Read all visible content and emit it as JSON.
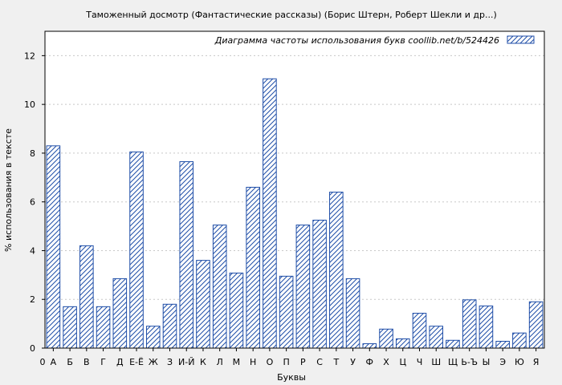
{
  "chart_data": {
    "type": "bar",
    "title": "Таможенный досмотр (Фантастические рассказы) (Борис Штерн, Роберт Шекли и др...)",
    "xlabel": "Буквы",
    "ylabel": "% использования в тексте",
    "legend": "Диаграмма частоты использования букв  coollib.net/b/524426",
    "legend_position": "top-right",
    "ylim": [
      0,
      13
    ],
    "yticks": [
      0,
      2,
      4,
      6,
      8,
      10,
      12
    ],
    "x_start_label": "0",
    "categories": [
      "А",
      "Б",
      "В",
      "Г",
      "Д",
      "Е-Ё",
      "Ж",
      "З",
      "И-Й",
      "К",
      "Л",
      "М",
      "Н",
      "О",
      "П",
      "Р",
      "С",
      "Т",
      "У",
      "Ф",
      "Х",
      "Ц",
      "Ч",
      "Ш",
      "Щ",
      "Ь-Ъ",
      "Ы",
      "Э",
      "Ю",
      "Я"
    ],
    "values": [
      8.3,
      1.7,
      4.2,
      1.7,
      2.85,
      8.05,
      0.9,
      1.8,
      7.65,
      3.6,
      5.05,
      3.08,
      6.6,
      11.05,
      2.95,
      5.05,
      5.25,
      6.4,
      2.85,
      0.18,
      0.78,
      0.38,
      1.43,
      0.9,
      0.32,
      1.98,
      1.73,
      0.28,
      0.62,
      1.9
    ],
    "grid": true,
    "colors": {
      "bar_stroke": "#1f4ea8",
      "bar_hatch": "#1f4ea8",
      "bar_fill": "#ffffff",
      "plot_bg": "#ffffff",
      "page_bg": "#f0f0f0",
      "grid": "#c8c8c8"
    }
  }
}
